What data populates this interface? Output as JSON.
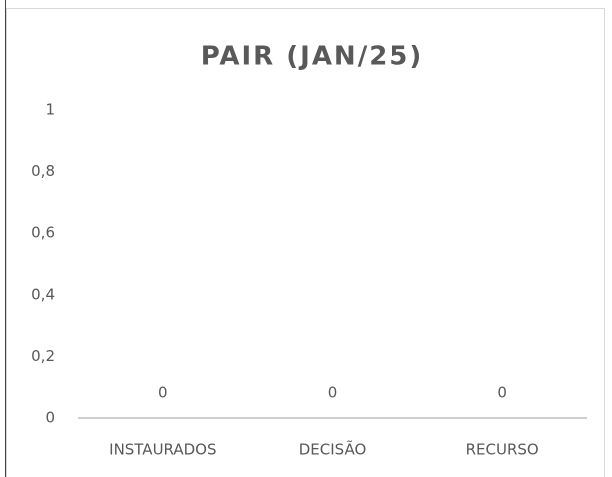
{
  "chart_data": {
    "type": "bar",
    "title": "PAIR (JAN/25)",
    "categories": [
      "INSTAURADOS",
      "DECISÃO",
      "RECURSO"
    ],
    "values": [
      0,
      0,
      0
    ],
    "color": "#4472c4",
    "ylim": [
      0,
      1
    ],
    "yticks": [
      0,
      {
        "value": 0.2,
        "label": "0,2"
      },
      {
        "value": 0.4,
        "label": "0,4"
      },
      {
        "value": 0.6,
        "label": "0,6"
      },
      {
        "value": 0.8,
        "label": "0,8"
      },
      1
    ],
    "grid": false
  }
}
